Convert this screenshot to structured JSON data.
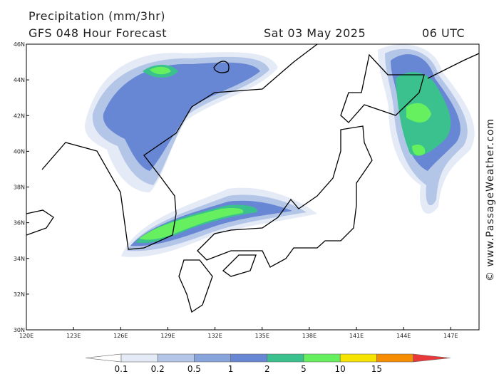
{
  "header": {
    "title": "Precipitation (mm/3hr)",
    "model_line": "GFS 048 Hour Forecast",
    "date": "Sat 03 May 2025",
    "time": "06 UTC"
  },
  "map": {
    "lat_labels": [
      "46N",
      "44N",
      "42N",
      "40N",
      "38N",
      "36N",
      "34N",
      "32N",
      "30N"
    ],
    "lon_labels": [
      "120E",
      "123E",
      "126E",
      "129E",
      "132E",
      "135E",
      "138E",
      "141E",
      "144E",
      "147E"
    ]
  },
  "legend": {
    "labels": [
      "0.1",
      "0.2",
      "0.5",
      "1",
      "2",
      "5",
      "10",
      "15"
    ],
    "colors": [
      "#ffffff",
      "#e4ebf6",
      "#b4c6e7",
      "#88a4dc",
      "#6786d4",
      "#3ac18e",
      "#66f060",
      "#f6e400",
      "#f68c00",
      "#e8383a"
    ]
  },
  "credit": "© www.PassageWeather.com"
}
